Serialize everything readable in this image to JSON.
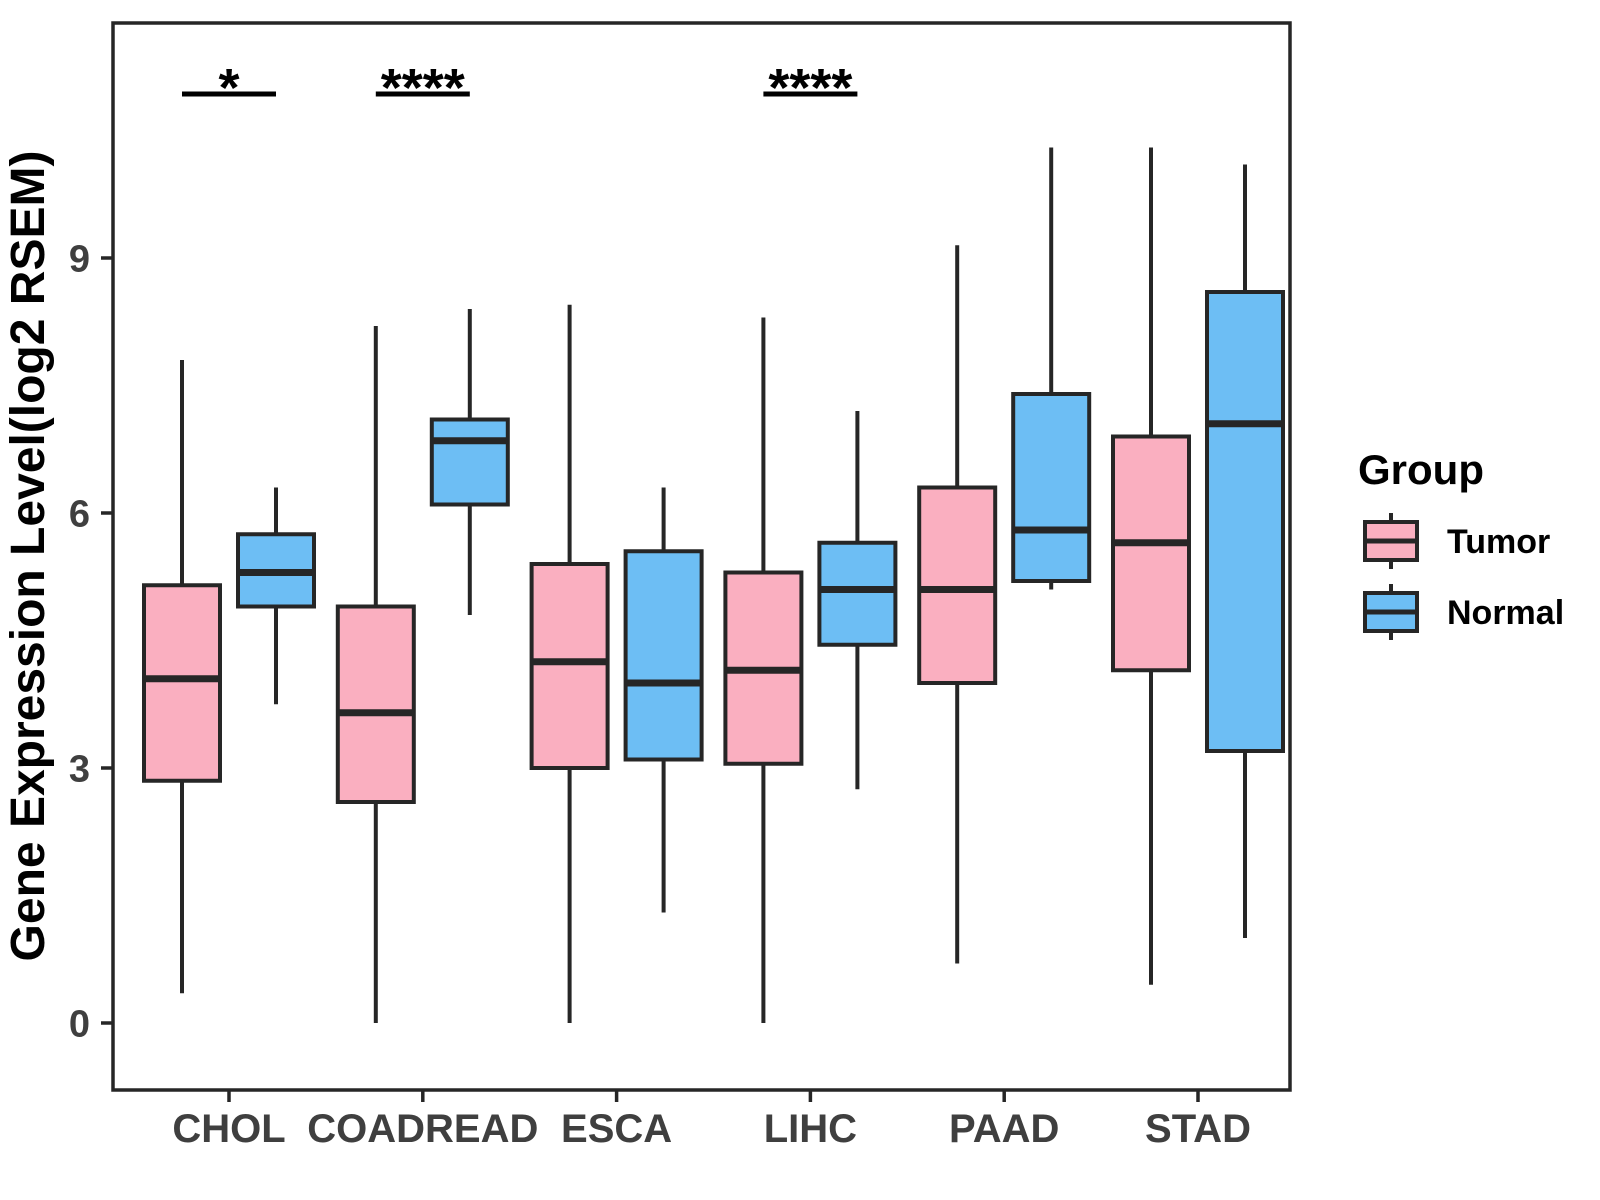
{
  "figure": {
    "background": "#FFFFFF"
  },
  "chart_data": {
    "type": "boxplot",
    "title": "",
    "xlabel": "",
    "ylabel": "Gene Expression Level(log2 RSEM)",
    "categories": [
      "CHOL",
      "COADREAD",
      "ESCA",
      "LIHC",
      "PAAD",
      "STAD"
    ],
    "y_ticks": [
      0,
      3,
      6,
      9
    ],
    "ylim": [
      -0.8,
      11.8
    ],
    "grid": "off",
    "legend": {
      "title": "Group",
      "position": "right",
      "entries": [
        {
          "label": "Tumor",
          "color": "#FAAFC0"
        },
        {
          "label": "Normal",
          "color": "#6DBEF4"
        }
      ]
    },
    "series": [
      {
        "name": "Tumor",
        "color": "#FAAFC0",
        "boxes": [
          {
            "category": "CHOL",
            "min": 0.35,
            "q1": 2.85,
            "median": 4.05,
            "q3": 5.15,
            "max": 7.8
          },
          {
            "category": "COADREAD",
            "min": 0.0,
            "q1": 2.6,
            "median": 3.65,
            "q3": 4.9,
            "max": 8.2
          },
          {
            "category": "ESCA",
            "min": 0.0,
            "q1": 3.0,
            "median": 4.25,
            "q3": 5.4,
            "max": 8.45
          },
          {
            "category": "LIHC",
            "min": 0.0,
            "q1": 3.05,
            "median": 4.15,
            "q3": 5.3,
            "max": 8.3
          },
          {
            "category": "PAAD",
            "min": 0.7,
            "q1": 4.0,
            "median": 5.1,
            "q3": 6.3,
            "max": 9.15
          },
          {
            "category": "STAD",
            "min": 0.45,
            "q1": 4.15,
            "median": 5.65,
            "q3": 6.9,
            "max": 10.3
          }
        ]
      },
      {
        "name": "Normal",
        "color": "#6DBEF4",
        "boxes": [
          {
            "category": "CHOL",
            "min": 3.75,
            "q1": 4.9,
            "median": 5.3,
            "q3": 5.75,
            "max": 6.3
          },
          {
            "category": "COADREAD",
            "min": 4.8,
            "q1": 6.1,
            "median": 6.85,
            "q3": 7.1,
            "max": 8.4
          },
          {
            "category": "ESCA",
            "min": 1.3,
            "q1": 3.1,
            "median": 4.0,
            "q3": 5.55,
            "max": 6.3
          },
          {
            "category": "LIHC",
            "min": 2.75,
            "q1": 4.45,
            "median": 5.1,
            "q3": 5.65,
            "max": 7.2
          },
          {
            "category": "PAAD",
            "min": 5.1,
            "q1": 5.2,
            "median": 5.8,
            "q3": 7.4,
            "max": 10.3
          },
          {
            "category": "STAD",
            "min": 1.0,
            "q1": 3.2,
            "median": 7.05,
            "q3": 8.6,
            "max": 10.1
          }
        ]
      }
    ],
    "significance": [
      {
        "category": "CHOL",
        "label": "*",
        "y": 10.93
      },
      {
        "category": "COADREAD",
        "label": "****",
        "y": 10.93
      },
      {
        "category": "LIHC",
        "label": "****",
        "y": 10.93
      }
    ],
    "colors": {
      "box_stroke": "#262626",
      "panel_border": "#262626",
      "axis_tick_text": "#3F3F3F",
      "title_text": "#000000"
    }
  }
}
